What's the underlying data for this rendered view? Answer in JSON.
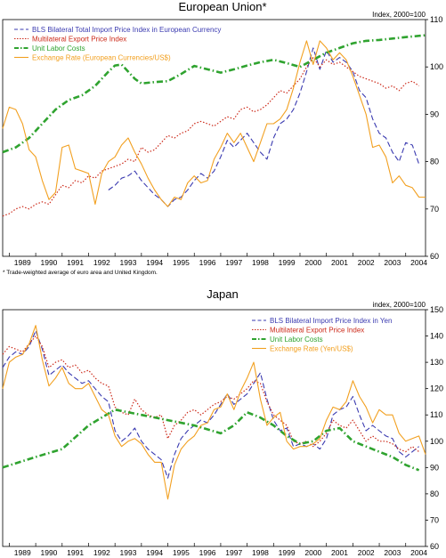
{
  "chart_data": [
    {
      "type": "line",
      "title": "European Union*",
      "ylabel": "Index, 2000=100",
      "ylim": [
        60,
        110
      ],
      "yticks": [
        60,
        70,
        80,
        90,
        100,
        110
      ],
      "xlim": [
        1988.75,
        2004.75
      ],
      "xticks": [
        "1989",
        "1990",
        "1991",
        "1992",
        "1993",
        "1994",
        "1995",
        "1996",
        "1997",
        "1998",
        "1999",
        "2000",
        "2001",
        "2002",
        "2003",
        "2004"
      ],
      "legend_position": "top-left",
      "footnote": "* Trade-weighted average of euro area and United Kingdom.",
      "series": [
        {
          "name": "BLS Bilateral Total Import Price Index in European Currency",
          "color": "#3a3ab0",
          "style": "dashed",
          "x": [
            1992.75,
            1993.0,
            1993.25,
            1993.5,
            1993.75,
            1994.0,
            1994.25,
            1994.5,
            1994.75,
            1995.0,
            1995.25,
            1995.5,
            1995.75,
            1996.0,
            1996.25,
            1996.5,
            1996.75,
            1997.0,
            1997.25,
            1997.5,
            1997.75,
            1998.0,
            1998.25,
            1998.5,
            1998.75,
            1999.0,
            1999.25,
            1999.5,
            1999.75,
            2000.0,
            2000.25,
            2000.5,
            2000.75,
            2001.0,
            2001.25,
            2001.5,
            2001.75,
            2002.0,
            2002.25,
            2002.5,
            2002.75,
            2003.0,
            2003.25,
            2003.5,
            2003.75,
            2004.0,
            2004.25,
            2004.5
          ],
          "y": [
            74,
            75,
            76.5,
            77,
            78,
            76,
            74.5,
            73,
            72,
            70.5,
            72,
            72.5,
            74,
            76,
            77.5,
            76.5,
            78,
            81,
            84.5,
            83,
            84.5,
            86,
            84,
            82,
            80.5,
            85,
            88,
            89,
            91,
            94.5,
            99,
            104,
            99.5,
            103.5,
            101,
            102,
            101,
            99,
            95,
            93.5,
            89,
            86,
            85,
            82,
            80,
            84,
            83.5,
            79.5
          ]
        },
        {
          "name": "Multilateral Export Price Index",
          "color": "#cc2a1a",
          "style": "dotted",
          "x": [
            1988.75,
            1989.0,
            1989.25,
            1989.5,
            1989.75,
            1990.0,
            1990.25,
            1990.5,
            1990.75,
            1991.0,
            1991.25,
            1991.5,
            1991.75,
            1992.0,
            1992.25,
            1992.5,
            1992.75,
            1993.0,
            1993.25,
            1993.5,
            1993.75,
            1994.0,
            1994.25,
            1994.5,
            1994.75,
            1995.0,
            1995.25,
            1995.5,
            1995.75,
            1996.0,
            1996.25,
            1996.5,
            1996.75,
            1997.0,
            1997.25,
            1997.5,
            1997.75,
            1998.0,
            1998.25,
            1998.5,
            1998.75,
            1999.0,
            1999.25,
            1999.5,
            1999.75,
            2000.0,
            2000.25,
            2000.5,
            2000.75,
            2001.0,
            2001.25,
            2001.5,
            2001.75,
            2002.0,
            2002.25,
            2002.5,
            2002.75,
            2003.0,
            2003.25,
            2003.5,
            2003.75,
            2004.0,
            2004.25,
            2004.5
          ],
          "y": [
            68.5,
            69,
            70,
            70.5,
            70,
            71,
            71.5,
            71,
            73,
            75,
            74.5,
            76,
            75.5,
            77,
            76.5,
            78,
            78.5,
            79,
            79.5,
            80.5,
            80,
            83,
            82,
            82.5,
            84,
            85.5,
            85,
            86,
            86.5,
            88,
            88.5,
            88,
            87.5,
            88.5,
            89.5,
            89,
            91,
            91.5,
            90.5,
            91,
            92,
            93.5,
            95,
            94.5,
            96,
            97.5,
            100,
            102,
            100,
            101.5,
            100.5,
            101,
            100,
            99,
            98,
            97.5,
            97,
            96.5,
            95.5,
            96,
            95,
            96.5,
            97,
            96
          ]
        },
        {
          "name": "Unit Labor Costs",
          "color": "#2fa32f",
          "style": "dashdot",
          "x": [
            1988.75,
            1989.25,
            1989.75,
            1990.25,
            1990.75,
            1991.25,
            1991.75,
            1992.25,
            1992.75,
            1993.0,
            1993.25,
            1993.5,
            1993.75,
            1994.0,
            1994.5,
            1995.0,
            1995.5,
            1996.0,
            1996.5,
            1997.0,
            1997.5,
            1998.0,
            1998.5,
            1999.0,
            1999.5,
            2000.0,
            2000.5,
            2001.0,
            2001.5,
            2002.0,
            2002.5,
            2003.0,
            2003.5,
            2004.0,
            2004.75
          ],
          "y": [
            82,
            83,
            85,
            88,
            91,
            93,
            94,
            96,
            99,
            100.3,
            100.5,
            99,
            97.5,
            96.5,
            96.8,
            97,
            98.5,
            100.2,
            99.5,
            98.8,
            99.5,
            100.3,
            101,
            101.5,
            100.8,
            100,
            101.5,
            103,
            104,
            105,
            105.5,
            105.7,
            106,
            106.3,
            106.7
          ]
        },
        {
          "name": "Exchange Rate (European Currencies/US$)",
          "color": "#f2a020",
          "style": "solid",
          "x": [
            1988.75,
            1989.0,
            1989.25,
            1989.5,
            1989.75,
            1990.0,
            1990.25,
            1990.5,
            1990.75,
            1991.0,
            1991.25,
            1991.5,
            1991.75,
            1992.0,
            1992.25,
            1992.5,
            1992.75,
            1993.0,
            1993.25,
            1993.5,
            1993.75,
            1994.0,
            1994.25,
            1994.5,
            1994.75,
            1995.0,
            1995.25,
            1995.5,
            1995.75,
            1996.0,
            1996.25,
            1996.5,
            1996.75,
            1997.0,
            1997.25,
            1997.5,
            1997.75,
            1998.0,
            1998.25,
            1998.5,
            1998.75,
            1999.0,
            1999.25,
            1999.5,
            1999.75,
            2000.0,
            2000.25,
            2000.5,
            2000.75,
            2001.0,
            2001.25,
            2001.5,
            2001.75,
            2002.0,
            2002.25,
            2002.5,
            2002.75,
            2003.0,
            2003.25,
            2003.5,
            2003.75,
            2004.0,
            2004.25,
            2004.5,
            2004.75
          ],
          "y": [
            87,
            91.5,
            91,
            88,
            82.5,
            81,
            76,
            72,
            73.5,
            83,
            83.5,
            78.5,
            78,
            77.5,
            71,
            77.5,
            80,
            81,
            83.5,
            85,
            82,
            79.5,
            76.5,
            74,
            72,
            70.5,
            72.5,
            72,
            75.5,
            77,
            75.5,
            76,
            80.5,
            83,
            86,
            84,
            86,
            83,
            80,
            84,
            88,
            88,
            89,
            91,
            95.5,
            101,
            105.5,
            100.5,
            105.5,
            104,
            101.5,
            103,
            101.5,
            98,
            94,
            90,
            83,
            83.5,
            81,
            75.5,
            77,
            75,
            74.5,
            72.5,
            72.5
          ]
        }
      ]
    },
    {
      "type": "line",
      "title": "Japan",
      "ylabel": "index, 2000=100",
      "ylim": [
        60,
        150
      ],
      "yticks": [
        60,
        70,
        80,
        90,
        100,
        110,
        120,
        130,
        140,
        150
      ],
      "xlim": [
        1988.75,
        2004.75
      ],
      "xticks": [
        "1989",
        "1990",
        "1991",
        "1992",
        "1993",
        "1994",
        "1995",
        "1996",
        "1997",
        "1998",
        "1999",
        "2000",
        "2001",
        "2002",
        "2003",
        "2004"
      ],
      "legend_position": "top-right",
      "series": [
        {
          "name": "BLS Bilateral Import Price Index in Yen",
          "color": "#3a3ab0",
          "style": "dashed",
          "x": [
            1988.75,
            1989.0,
            1989.25,
            1989.5,
            1989.75,
            1990.0,
            1990.25,
            1990.5,
            1990.75,
            1991.0,
            1991.25,
            1991.5,
            1991.75,
            1992.0,
            1992.25,
            1992.5,
            1992.75,
            1993.0,
            1993.25,
            1993.5,
            1993.75,
            1994.0,
            1994.25,
            1994.5,
            1994.75,
            1995.0,
            1995.25,
            1995.5,
            1995.75,
            1996.0,
            1996.25,
            1996.5,
            1996.75,
            1997.0,
            1997.25,
            1997.5,
            1997.75,
            1998.0,
            1998.25,
            1998.5,
            1998.75,
            1999.0,
            1999.25,
            1999.5,
            1999.75,
            2000.0,
            2000.25,
            2000.5,
            2000.75,
            2001.0,
            2001.25,
            2001.5,
            2001.75,
            2002.0,
            2002.25,
            2002.5,
            2002.75,
            2003.0,
            2003.25,
            2003.5,
            2003.75,
            2004.0,
            2004.25,
            2004.5
          ],
          "y": [
            128,
            132,
            134,
            133,
            136,
            142,
            135,
            125,
            127,
            129,
            126,
            124,
            122,
            123,
            120,
            117,
            115,
            104,
            100,
            102,
            105,
            100,
            97,
            95,
            93,
            86,
            95,
            101,
            104,
            106,
            108,
            107,
            110,
            114,
            118,
            114,
            116,
            118,
            122,
            126,
            116,
            108,
            104,
            105,
            98,
            99,
            98,
            99,
            97,
            101,
            110,
            112,
            113,
            117,
            110,
            104,
            106,
            104,
            102,
            101,
            96,
            94,
            96,
            98
          ]
        },
        {
          "name": "Multilateral Export Price Index",
          "color": "#cc2a1a",
          "style": "dotted",
          "x": [
            1988.75,
            1989.0,
            1989.25,
            1989.5,
            1989.75,
            1990.0,
            1990.25,
            1990.5,
            1990.75,
            1991.0,
            1991.25,
            1991.5,
            1991.75,
            1992.0,
            1992.25,
            1992.5,
            1992.75,
            1993.0,
            1993.25,
            1993.5,
            1993.75,
            1994.0,
            1994.25,
            1994.5,
            1994.75,
            1995.0,
            1995.25,
            1995.5,
            1995.75,
            1996.0,
            1996.25,
            1996.5,
            1996.75,
            1997.0,
            1997.25,
            1997.5,
            1997.75,
            1998.0,
            1998.25,
            1998.5,
            1998.75,
            1999.0,
            1999.25,
            1999.5,
            1999.75,
            2000.0,
            2000.25,
            2000.5,
            2000.75,
            2001.0,
            2001.25,
            2001.5,
            2001.75,
            2002.0,
            2002.25,
            2002.5,
            2002.75,
            2003.0,
            2003.25,
            2003.5,
            2003.75,
            2004.0,
            2004.25,
            2004.5
          ],
          "y": [
            133,
            136,
            135,
            134,
            137,
            140,
            136,
            128,
            130,
            131,
            128,
            129,
            126,
            127,
            124,
            122,
            121,
            113,
            111,
            110,
            116,
            112,
            110,
            109,
            110,
            101,
            106,
            108,
            111,
            112,
            110,
            112,
            114,
            115,
            117,
            116,
            118,
            120,
            123,
            122,
            115,
            110,
            108,
            106,
            100,
            99,
            100,
            98,
            100,
            103,
            108,
            106,
            105,
            108,
            104,
            100,
            102,
            100,
            100,
            99,
            97,
            96,
            98,
            96
          ]
        },
        {
          "name": "Unit Labor Costs",
          "color": "#2fa32f",
          "style": "dashdot",
          "x": [
            1988.75,
            1990.0,
            1991.0,
            1992.0,
            1993.0,
            1994.0,
            1995.0,
            1996.0,
            1997.0,
            1997.5,
            1998.0,
            1998.5,
            1999.0,
            1999.5,
            2000.0,
            2000.5,
            2001.0,
            2001.5,
            2002.0,
            2002.5,
            2003.0,
            2003.5,
            2004.0,
            2004.5
          ],
          "y": [
            90,
            94,
            97,
            106,
            112,
            110,
            108,
            106,
            103,
            106,
            111,
            109,
            106,
            102,
            99,
            100,
            104,
            105,
            100,
            98,
            96,
            94,
            91,
            89
          ]
        },
        {
          "name": "Exchange Rate (Yen/US$)",
          "color": "#f2a020",
          "style": "solid",
          "x": [
            1988.75,
            1989.0,
            1989.25,
            1989.5,
            1989.75,
            1990.0,
            1990.25,
            1990.5,
            1990.75,
            1991.0,
            1991.25,
            1991.5,
            1991.75,
            1992.0,
            1992.25,
            1992.5,
            1992.75,
            1993.0,
            1993.25,
            1993.5,
            1993.75,
            1994.0,
            1994.25,
            1994.5,
            1994.75,
            1995.0,
            1995.25,
            1995.5,
            1995.75,
            1996.0,
            1996.25,
            1996.5,
            1996.75,
            1997.0,
            1997.25,
            1997.5,
            1997.75,
            1998.0,
            1998.25,
            1998.5,
            1998.75,
            1999.0,
            1999.25,
            1999.5,
            1999.75,
            2000.0,
            2000.25,
            2000.5,
            2000.75,
            2001.0,
            2001.25,
            2001.5,
            2001.75,
            2002.0,
            2002.25,
            2002.5,
            2002.75,
            2003.0,
            2003.25,
            2003.5,
            2003.75,
            2004.0,
            2004.25,
            2004.5,
            2004.75
          ],
          "y": [
            120,
            130,
            132,
            133,
            137,
            144,
            131,
            121,
            124,
            128,
            122,
            120,
            120,
            122,
            117,
            112,
            110,
            102,
            98,
            100,
            101,
            99,
            95,
            92,
            92,
            78,
            91,
            97,
            100,
            102,
            106,
            107,
            112,
            113,
            118,
            112,
            119,
            124,
            130,
            116,
            106,
            109,
            111,
            100,
            97,
            98,
            98,
            99,
            101,
            108,
            113,
            112,
            115,
            123,
            117,
            113,
            107,
            112,
            110,
            110,
            103,
            100,
            101,
            102,
            95
          ]
        }
      ]
    }
  ]
}
